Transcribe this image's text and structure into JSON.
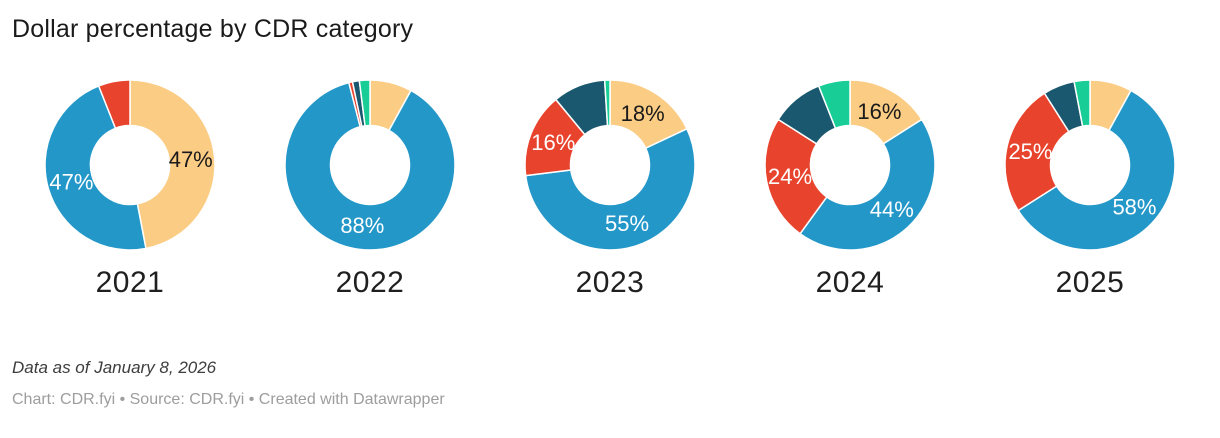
{
  "title": "Dollar percentage by CDR category",
  "footer": {
    "note": "Data as of January 8, 2026",
    "attribution": "Chart: CDR.fyi • Source: CDR.fyi • Created with Datawrapper"
  },
  "palette": {
    "blue": "#2397C8",
    "yellow": "#FBCC84",
    "red": "#E8432D",
    "dark_teal": "#19586F",
    "green": "#18CE96"
  },
  "chart_data": {
    "type": "pie",
    "subtype": "donut-multiples",
    "title": "Dollar percentage by CDR category",
    "units": "percent",
    "legend_position": "none",
    "segment_order": "clockwise-from-top",
    "charts": [
      {
        "year": "2021",
        "segments": [
          {
            "color": "yellow",
            "value": 47,
            "label": "47%",
            "label_color": "#1a1a1a"
          },
          {
            "color": "blue",
            "value": 47,
            "label": "47%",
            "label_color": "#ffffff"
          },
          {
            "color": "red",
            "value": 6
          }
        ]
      },
      {
        "year": "2022",
        "segments": [
          {
            "color": "yellow",
            "value": 8
          },
          {
            "color": "blue",
            "value": 88,
            "label": "88%",
            "label_color": "#ffffff"
          },
          {
            "color": "red",
            "value": 0.7
          },
          {
            "color": "dark_teal",
            "value": 1.3
          },
          {
            "color": "green",
            "value": 2
          }
        ]
      },
      {
        "year": "2023",
        "segments": [
          {
            "color": "yellow",
            "value": 18,
            "label": "18%",
            "label_color": "#1a1a1a"
          },
          {
            "color": "blue",
            "value": 55,
            "label": "55%",
            "label_color": "#ffffff"
          },
          {
            "color": "red",
            "value": 16,
            "label": "16%",
            "label_color": "#ffffff"
          },
          {
            "color": "dark_teal",
            "value": 10
          },
          {
            "color": "green",
            "value": 1
          }
        ]
      },
      {
        "year": "2024",
        "segments": [
          {
            "color": "yellow",
            "value": 16,
            "label": "16%",
            "label_color": "#1a1a1a"
          },
          {
            "color": "blue",
            "value": 44,
            "label": "44%",
            "label_color": "#ffffff"
          },
          {
            "color": "red",
            "value": 24,
            "label": "24%",
            "label_color": "#ffffff"
          },
          {
            "color": "dark_teal",
            "value": 10
          },
          {
            "color": "green",
            "value": 6
          }
        ]
      },
      {
        "year": "2025",
        "segments": [
          {
            "color": "yellow",
            "value": 8
          },
          {
            "color": "blue",
            "value": 58,
            "label": "58%",
            "label_color": "#ffffff"
          },
          {
            "color": "red",
            "value": 25,
            "label": "25%",
            "label_color": "#ffffff"
          },
          {
            "color": "dark_teal",
            "value": 6
          },
          {
            "color": "green",
            "value": 3
          }
        ]
      }
    ]
  }
}
